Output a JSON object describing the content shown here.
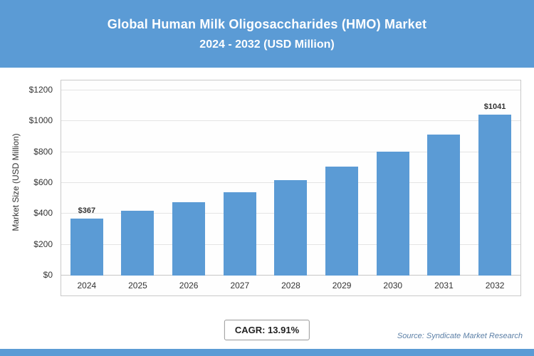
{
  "header": {
    "title_line1": "Global Human Milk Oligosaccharides (HMO) Market",
    "title_line2": "2024 - 2032 (USD Million)"
  },
  "chart_data": {
    "type": "bar",
    "categories": [
      "2024",
      "2025",
      "2026",
      "2027",
      "2028",
      "2029",
      "2030",
      "2031",
      "2032"
    ],
    "values": [
      367,
      418,
      476,
      542,
      618,
      704,
      802,
      913,
      1041
    ],
    "bar_labels": [
      "$367",
      "",
      "",
      "",
      "",
      "",
      "",
      "",
      "$1041"
    ],
    "title": "Global Human Milk Oligosaccharides (HMO) Market",
    "subtitle": "2024 - 2032 (USD Million)",
    "xlabel": "",
    "ylabel": "Market Size (USD Million)",
    "ylim": [
      0,
      1200
    ],
    "yticks": [
      "$0",
      "$200",
      "$400",
      "$600",
      "$800",
      "$1000",
      "$1200"
    ],
    "grid": true,
    "legend": "none",
    "bar_color": "#5B9BD5"
  },
  "footer": {
    "cagr_label": "CAGR: 13.91%",
    "source": "Source: Syndicate Market Research"
  },
  "colors": {
    "accent": "#5B9BD5",
    "grid": "#e4e4e4",
    "text": "#333333"
  }
}
